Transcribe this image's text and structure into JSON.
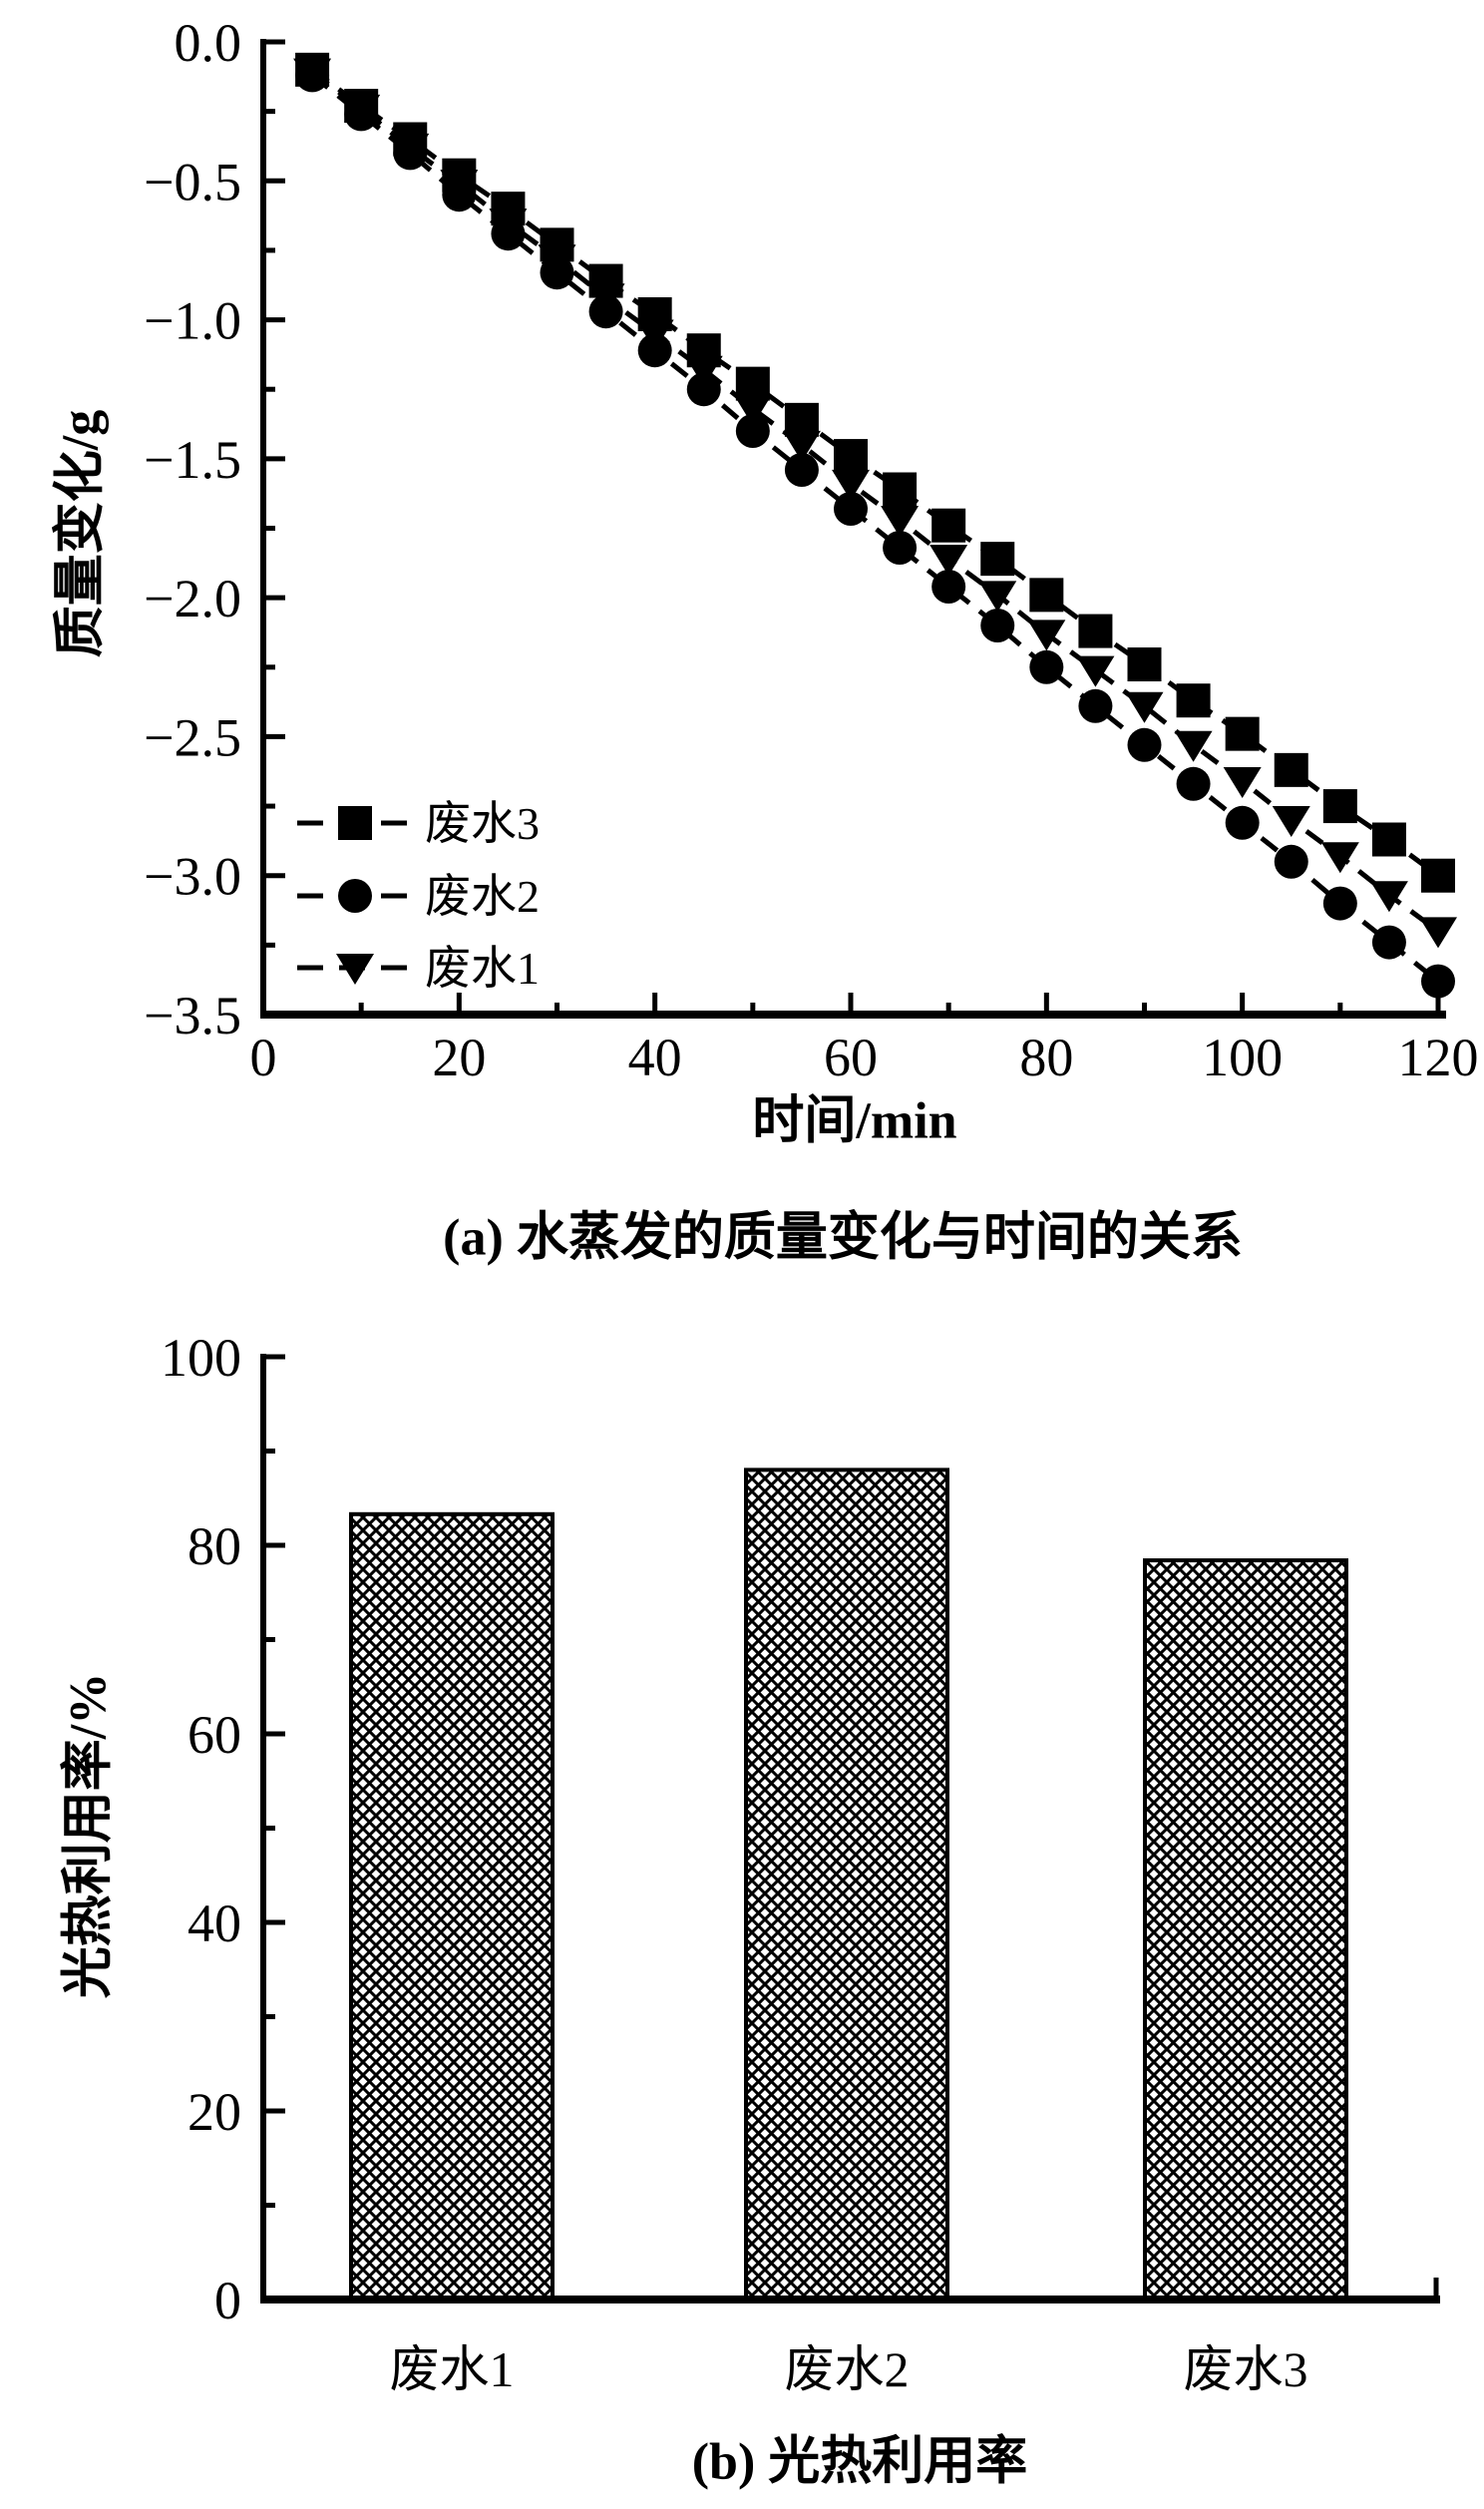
{
  "figure": {
    "background_color": "#ffffff",
    "foreground_color": "#000000"
  },
  "chart_data": [
    {
      "id": "a",
      "type": "line",
      "caption": "(a) 水蒸发的质量变化与时间的关系",
      "xlabel": "时间/min",
      "ylabel": "质量变化/g",
      "xlim": [
        0,
        120
      ],
      "ylim": [
        -3.5,
        0.0
      ],
      "grid": false,
      "line_style": "dashed",
      "color": "#000000",
      "x_tick_labels": [
        "0",
        "20",
        "40",
        "60",
        "80",
        "100",
        "120"
      ],
      "x_major_ticks": [
        0,
        20,
        40,
        60,
        80,
        100,
        120
      ],
      "x_minor_step": 10,
      "y_major_ticks": [
        0.0,
        -0.5,
        -1.0,
        -1.5,
        -2.0,
        -2.5,
        -3.0,
        -3.5
      ],
      "y_tick_labels": [
        "0.0",
        "−0.5",
        "−1.0",
        "−1.5",
        "−2.0",
        "−2.5",
        "−3.0",
        "−3.5"
      ],
      "y_minor_step": 0.25,
      "x": [
        5,
        10,
        15,
        20,
        25,
        30,
        35,
        40,
        45,
        50,
        55,
        60,
        65,
        70,
        75,
        80,
        85,
        90,
        95,
        100,
        105,
        110,
        115,
        120
      ],
      "series": [
        {
          "name": "废水3",
          "marker": "square",
          "values": [
            -0.1,
            -0.23,
            -0.35,
            -0.48,
            -0.6,
            -0.73,
            -0.86,
            -0.98,
            -1.11,
            -1.23,
            -1.36,
            -1.49,
            -1.61,
            -1.74,
            -1.86,
            -1.99,
            -2.12,
            -2.24,
            -2.37,
            -2.49,
            -2.62,
            -2.75,
            -2.87,
            -3.0
          ]
        },
        {
          "name": "废水2",
          "marker": "circle",
          "values": [
            -0.12,
            -0.26,
            -0.4,
            -0.55,
            -0.69,
            -0.83,
            -0.97,
            -1.11,
            -1.25,
            -1.4,
            -1.54,
            -1.68,
            -1.82,
            -1.96,
            -2.1,
            -2.25,
            -2.39,
            -2.53,
            -2.67,
            -2.81,
            -2.95,
            -3.1,
            -3.24,
            -3.38
          ]
        },
        {
          "name": "废水1",
          "marker": "triangle-down",
          "values": [
            -0.11,
            -0.24,
            -0.38,
            -0.51,
            -0.65,
            -0.78,
            -0.92,
            -1.05,
            -1.18,
            -1.32,
            -1.45,
            -1.59,
            -1.72,
            -1.86,
            -1.99,
            -2.13,
            -2.26,
            -2.39,
            -2.53,
            -2.66,
            -2.8,
            -2.93,
            -3.07,
            -3.2
          ]
        }
      ],
      "legend": {
        "position": "lower-left",
        "entries": [
          "废水3",
          "废水2",
          "废水1"
        ]
      }
    },
    {
      "id": "b",
      "type": "bar",
      "caption": "(b) 光热利用率",
      "xlabel": "",
      "ylabel": "光热利用率/%",
      "ylim": [
        0,
        100
      ],
      "grid": false,
      "bar_fill": "crosshatch",
      "bar_color": "#000000",
      "categories": [
        "废水1",
        "废水2",
        "废水3"
      ],
      "values": [
        83.3,
        88.0,
        78.4
      ],
      "y_major_ticks": [
        0,
        20,
        40,
        60,
        80,
        100
      ],
      "y_tick_labels": [
        "0",
        "20",
        "40",
        "60",
        "80",
        "100"
      ],
      "y_minor_step": 10
    }
  ]
}
